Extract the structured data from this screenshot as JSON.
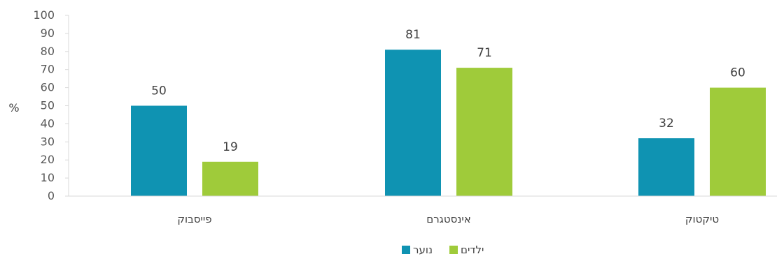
{
  "chart_data": {
    "type": "bar",
    "categories": [
      "פייסבוק",
      "אינסטגרם",
      "טיקטוק"
    ],
    "series": [
      {
        "name": "נוער",
        "values": [
          50,
          81,
          32
        ],
        "color": "#0f93b2"
      },
      {
        "name": "ילדים",
        "values": [
          19,
          71,
          60
        ],
        "color": "#9fcb3a"
      }
    ],
    "ylabel": "%",
    "ylim": [
      0,
      100
    ],
    "yticks": [
      0,
      10,
      20,
      30,
      40,
      50,
      60,
      70,
      80,
      90,
      100
    ],
    "grid": false,
    "legend": "bottom-center",
    "data_labels": true
  }
}
